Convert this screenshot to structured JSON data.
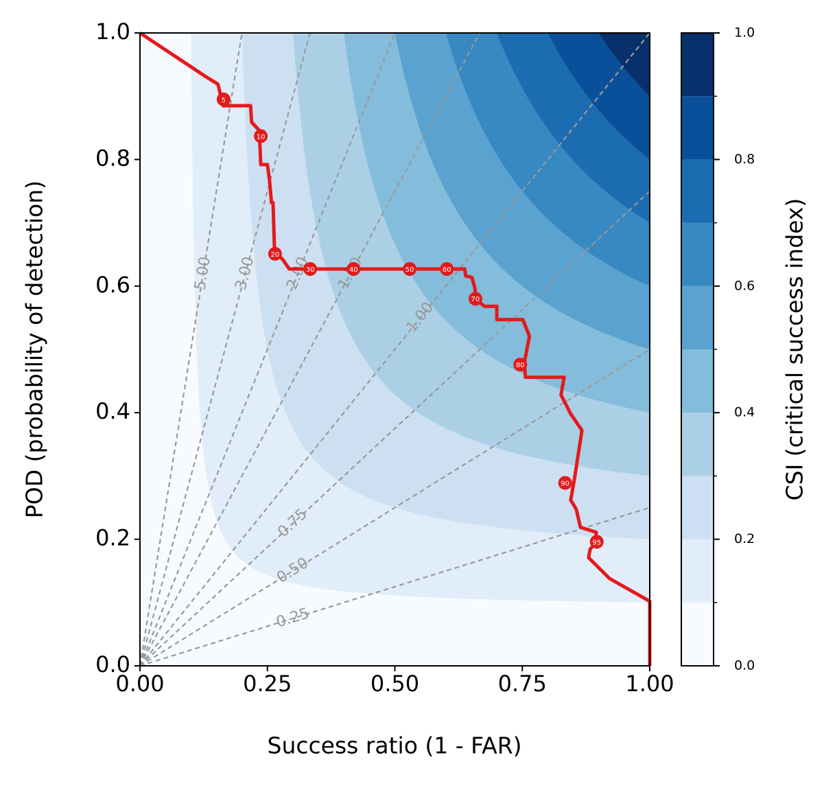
{
  "chart_data": {
    "type": "performance",
    "xlabel": "Success ratio (1 - FAR)",
    "ylabel": "POD (probability of detection)",
    "xlim": [
      0,
      1
    ],
    "ylim": [
      0,
      1
    ],
    "xticks": [
      {
        "value": 0,
        "label": "0.00"
      },
      {
        "value": 0.25,
        "label": "0.25"
      },
      {
        "value": 0.5,
        "label": "0.50"
      },
      {
        "value": 0.75,
        "label": "0.75"
      },
      {
        "value": 1,
        "label": "1.00"
      }
    ],
    "yticks": [
      {
        "value": 0,
        "label": "0.0"
      },
      0.2,
      0.4,
      0.6,
      0.8,
      {
        "value": 1,
        "label": "1.0"
      }
    ],
    "colorbar": {
      "label": "CSI (critical success index)",
      "lim": [
        0,
        1
      ],
      "ticks": [
        {
          "value": 0,
          "label": "0.0"
        },
        0.2,
        0.4,
        0.6,
        0.8,
        {
          "value": 1,
          "label": "1.0"
        }
      ]
    },
    "levels": [
      0,
      0.1,
      0.2,
      0.3,
      0.4,
      0.5,
      0.6,
      0.7,
      0.8,
      0.9,
      1.0
    ],
    "level_colors": [
      "#f7fbff",
      "#e1edf8",
      "#cde0f1",
      "#abd0e6",
      "#84bcdb",
      "#5aa2cf",
      "#3888c1",
      "#1c6cb1",
      "#0a4f9a",
      "#08306b"
    ],
    "bias_color": "#999999",
    "bias": [
      {
        "value": 0.25,
        "label": "0.25"
      },
      {
        "value": 0.5,
        "label": "0.50"
      },
      {
        "value": 0.75,
        "label": "0.75"
      },
      {
        "value": 1,
        "label": "1.00"
      },
      {
        "value": 1.5,
        "label": "1.50"
      },
      {
        "value": 2,
        "label": "2.00"
      },
      {
        "value": 3,
        "label": "3.00"
      },
      {
        "value": 5,
        "label": "5.00"
      }
    ],
    "curve": {
      "color": "#e31a1c",
      "x": [
        0,
        0.129,
        0.153,
        0.163,
        0.217,
        0.219,
        0.234,
        0.237,
        0.25,
        0.254,
        0.258,
        0.261,
        0.264,
        0.28,
        0.293,
        0.637,
        0.639,
        0.651,
        0.657,
        0.659,
        0.676,
        0.7,
        0.7,
        0.751,
        0.764,
        0.754,
        0.756,
        0.832,
        0.826,
        0.845,
        0.867,
        0.853,
        0.845,
        0.856,
        0.864,
        0.895,
        0.894,
        0.883,
        0.88,
        0.921,
        1.0,
        1.0
      ],
      "y": [
        1.0,
        0.931,
        0.919,
        0.885,
        0.885,
        0.859,
        0.846,
        0.792,
        0.792,
        0.768,
        0.732,
        0.732,
        0.655,
        0.642,
        0.627,
        0.627,
        0.616,
        0.614,
        0.597,
        0.579,
        0.568,
        0.568,
        0.547,
        0.547,
        0.521,
        0.479,
        0.456,
        0.456,
        0.428,
        0.398,
        0.372,
        0.299,
        0.262,
        0.247,
        0.219,
        0.211,
        0.195,
        0.184,
        0.171,
        0.138,
        0.102,
        0.0
      ]
    },
    "markers": {
      "thresholds": [
        5,
        10,
        20,
        30,
        40,
        50,
        60,
        70,
        80,
        90,
        95
      ],
      "x": [
        0.164,
        0.237,
        0.265,
        0.334,
        0.419,
        0.529,
        0.602,
        0.658,
        0.746,
        0.834,
        0.896
      ],
      "y": [
        0.895,
        0.837,
        0.651,
        0.627,
        0.627,
        0.627,
        0.627,
        0.58,
        0.476,
        0.289,
        0.196
      ]
    }
  }
}
